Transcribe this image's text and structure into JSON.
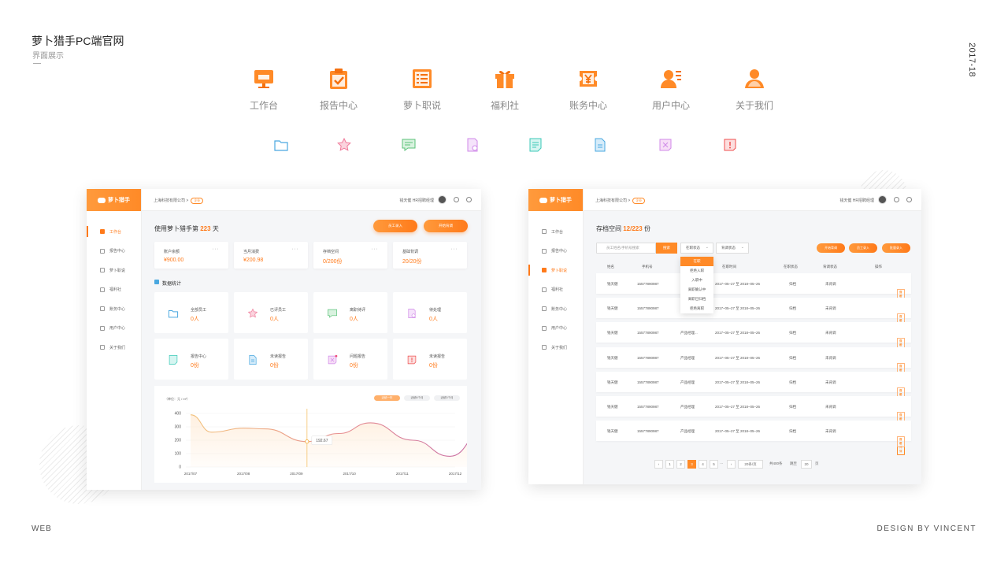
{
  "header": {
    "title": "萝卜猎手PC端官网",
    "subtitle": "界面展示",
    "year": "2017-18"
  },
  "footer": {
    "left": "WEB",
    "right": "DESIGN BY VINCENT"
  },
  "nav_icons": [
    {
      "label": "工作台",
      "icon": "monitor-icon"
    },
    {
      "label": "报告中心",
      "icon": "clipboard-check-icon"
    },
    {
      "label": "萝卜职说",
      "icon": "list-icon"
    },
    {
      "label": "福利社",
      "icon": "gift-icon"
    },
    {
      "label": "账务中心",
      "icon": "yen-ticket-icon"
    },
    {
      "label": "用户中心",
      "icon": "user-card-icon"
    },
    {
      "label": "关于我们",
      "icon": "person-icon"
    }
  ],
  "colors": {
    "accent": "#ff7a1a",
    "blue": "#4aa8e0",
    "pink": "#f07a9a",
    "green": "#5cc27a",
    "purple": "#d08ae8",
    "teal": "#3cc9b8",
    "red": "#ef4f4f"
  },
  "screen1": {
    "logo": "萝卜猎手",
    "sidebar": [
      "工作台",
      "报告中心",
      "萝卜职说",
      "福利社",
      "账务中心",
      "用户中心",
      "关于我们"
    ],
    "breadcrumb": "上海科技有限公司 >",
    "breadcrumb_tag": "企业",
    "user": "钱天健 HR招聘经理",
    "usage_prefix": "使用萝卜猎手第",
    "usage_days": "223",
    "usage_suffix": "天",
    "btn_add_employee": "员工录入",
    "btn_start_check": "开始背调",
    "stats": [
      {
        "label": "账户余额",
        "value": "¥900.00"
      },
      {
        "label": "当月消费",
        "value": "¥200.98"
      },
      {
        "label": "存档空间",
        "value": "0/200份"
      },
      {
        "label": "基础背调",
        "value": "20/20份"
      }
    ],
    "section_title": "数据统计",
    "counts": [
      {
        "label": "全部员工",
        "value": "0人"
      },
      {
        "label": "已评员工",
        "value": "0人"
      },
      {
        "label": "离职待评",
        "value": "0人"
      },
      {
        "label": "待处理",
        "value": "0人"
      },
      {
        "label": "报告中心",
        "value": "0份"
      },
      {
        "label": "未读报告",
        "value": "0份"
      },
      {
        "label": "问题报告",
        "value": "0份"
      },
      {
        "label": "未读报告",
        "value": "0份"
      }
    ],
    "chart_unit": "（单位：元 / m²）",
    "chart_buttons": [
      "近统一年",
      "近统6个月",
      "近统3个月"
    ]
  },
  "chart_data": {
    "type": "line",
    "title": "",
    "ylabel": "（单位：元 / m²）",
    "xlabel": "",
    "categories": [
      "2017/07",
      "2017/08",
      "2017/09",
      "2017/10",
      "2017/11",
      "2017/12"
    ],
    "y_ticks": [
      400,
      300,
      200,
      100,
      0
    ],
    "ylim": [
      0,
      400
    ],
    "series": [
      {
        "x": [
          0,
          0.4,
          1,
          1.4,
          2.2,
          2.8,
          3.4,
          4.2,
          4.9,
          5.6
        ],
        "values": [
          390,
          260,
          290,
          285,
          190,
          250,
          330,
          200,
          80,
          300
        ]
      }
    ],
    "tooltip": "192.67",
    "tooltip_x": 2.2,
    "grid": true
  },
  "screen2": {
    "logo": "萝卜猎手",
    "sidebar": [
      "工作台",
      "报告中心",
      "萝卜职说",
      "福利社",
      "账务中心",
      "用户中心",
      "关于我们"
    ],
    "breadcrumb": "上海科技有限公司 >",
    "breadcrumb_tag": "企业",
    "user": "钱天健 HR招聘经理",
    "storage_prefix": "存档空间",
    "storage_value": "12/223",
    "storage_suffix": "份",
    "search_placeholder": "员工姓名/手机号搜索",
    "search_btn": "搜索",
    "filter_status": "在职状态",
    "filter_check": "背调状态",
    "btn_start_check": "开始背调",
    "btn_add": "员工录入",
    "btn_batch": "批量录入",
    "columns": [
      "姓名",
      "手机号",
      "职位",
      "在职时间",
      "在职状态",
      "背调状态",
      "操作"
    ],
    "dropdown": [
      "在职",
      "拒绝入职",
      "入职中",
      "离职确认中",
      "离职已归档",
      "拒绝离职"
    ],
    "rows": [
      {
        "name": "钱天健",
        "phone": "15577890987",
        "position": "",
        "period": "2017–05–27  至  2018–05–26",
        "status": "归档",
        "check": "未背调"
      },
      {
        "name": "钱天健",
        "phone": "15577890987",
        "position": "",
        "period": "2017–05–27  至  2018–05–26",
        "status": "归档",
        "check": "未背调"
      },
      {
        "name": "钱天健",
        "phone": "15577890987",
        "position": "产品经理...",
        "period": "2017–05–27  至  2018–05–26",
        "status": "归档",
        "check": "未背调"
      },
      {
        "name": "钱天健",
        "phone": "15577890987",
        "position": "产品经理",
        "period": "2017–05–27  至  2018–05–26",
        "status": "归档",
        "check": "未背调"
      },
      {
        "name": "钱天健",
        "phone": "15577890987",
        "position": "产品经理",
        "period": "2017–05–27  至  2018–05–26",
        "status": "归档",
        "check": "未背调"
      },
      {
        "name": "钱天健",
        "phone": "15577890987",
        "position": "产品经理",
        "period": "2017–05–27  至  2018–05–26",
        "status": "归档",
        "check": "未背调"
      },
      {
        "name": "钱天健",
        "phone": "15577890987",
        "position": "产品经理",
        "period": "2017–05–27  至  2018–05–26",
        "status": "归档",
        "check": "未背调"
      }
    ],
    "op_view": "查看详情",
    "op_eval": "评价",
    "pager": {
      "pages": [
        "1",
        "2",
        "3",
        "4",
        "5",
        "···"
      ],
      "current": "3",
      "size": "20条/页",
      "total": "共400条",
      "goto": "跳至",
      "goto_value": "20",
      "unit": "页"
    }
  }
}
